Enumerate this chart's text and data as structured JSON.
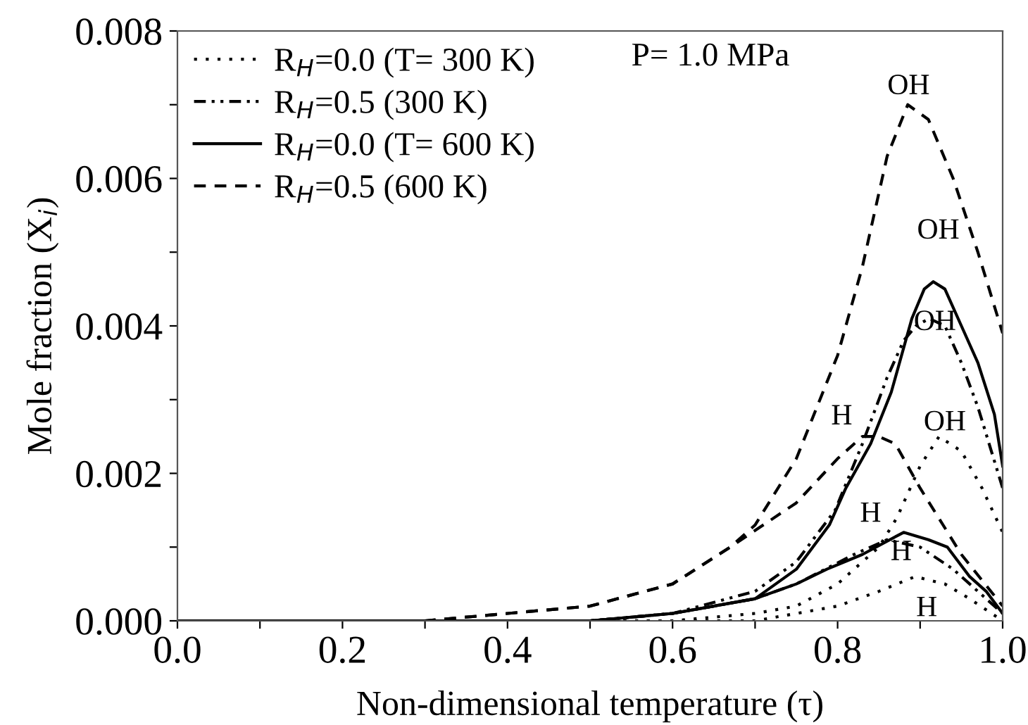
{
  "chart_data": {
    "type": "line",
    "xlabel": "Non-dimensional temperature (τ)",
    "ylabel": "Mole fraction (X$_{i}$)",
    "xlim": [
      0.0,
      1.0
    ],
    "ylim": [
      0.0,
      0.008
    ],
    "xticks": [
      {
        "value": 0.0,
        "label": "0.0"
      },
      {
        "value": 0.1,
        "label": null
      },
      {
        "value": 0.2,
        "label": "0.2"
      },
      {
        "value": 0.3,
        "label": null
      },
      {
        "value": 0.4,
        "label": "0.4"
      },
      {
        "value": 0.5,
        "label": null
      },
      {
        "value": 0.6,
        "label": "0.6"
      },
      {
        "value": 0.7,
        "label": null
      },
      {
        "value": 0.8,
        "label": "0.8"
      },
      {
        "value": 0.9,
        "label": null
      },
      {
        "value": 1.0,
        "label": "1.0"
      }
    ],
    "yticks": [
      {
        "value": 0.0,
        "label": "0.000"
      },
      {
        "value": 0.001,
        "label": null
      },
      {
        "value": 0.002,
        "label": "0.002"
      },
      {
        "value": 0.003,
        "label": null
      },
      {
        "value": 0.004,
        "label": "0.004"
      },
      {
        "value": 0.005,
        "label": null
      },
      {
        "value": 0.006,
        "label": "0.006"
      },
      {
        "value": 0.007,
        "label": null
      },
      {
        "value": 0.008,
        "label": "0.008"
      }
    ],
    "grid": false,
    "legend": "top left",
    "marker": "none",
    "series": [
      {
        "name": "R$_{H}$=0.0 (T= 300 K)",
        "color": "#000000",
        "line_style": "dotted",
        "x": [
          0.0,
          0.6,
          0.7,
          0.75,
          0.8,
          0.85,
          0.872,
          0.9,
          0.923,
          0.95,
          0.975,
          1.0
        ],
        "values": [
          0.0,
          0.0,
          0.0001,
          0.0002,
          0.0005,
          0.001,
          0.0014,
          0.0021,
          0.0025,
          0.0023,
          0.0018,
          0.0012
        ]
      },
      {
        "color": "#000000",
        "line_style": "dotted",
        "x": [
          0.0,
          0.7,
          0.75,
          0.8,
          0.85,
          0.894,
          0.93,
          0.96,
          1.0
        ],
        "values": [
          0.0,
          0.0,
          0.0001,
          0.0002,
          0.0004,
          0.0006,
          0.0005,
          0.0003,
          0.0
        ]
      },
      {
        "name": "R$_{H}$=0.5 (300 K)",
        "color": "#000000",
        "line_style": "dashdot",
        "x": [
          0.0,
          0.5,
          0.6,
          0.7,
          0.75,
          0.797,
          0.83,
          0.86,
          0.88,
          0.895,
          0.911,
          0.93,
          0.95,
          0.97,
          1.0
        ],
        "values": [
          0.0,
          0.0,
          0.0001,
          0.0004,
          0.0008,
          0.0015,
          0.0024,
          0.0033,
          0.0038,
          0.004,
          0.0041,
          0.004,
          0.0035,
          0.0029,
          0.0018
        ]
      },
      {
        "color": "#000000",
        "line_style": "dashdot",
        "x": [
          0.0,
          0.5,
          0.6,
          0.7,
          0.75,
          0.82,
          0.86,
          0.9,
          0.94,
          0.97,
          1.0
        ],
        "values": [
          0.0,
          0.0,
          0.0001,
          0.0003,
          0.0005,
          0.0009,
          0.0011,
          0.001,
          0.0007,
          0.0004,
          0.0001
        ]
      },
      {
        "name": "R$_{H}$=0.0 (T= 600 K)",
        "color": "#000000",
        "line_style": "solid",
        "x": [
          0.0,
          0.5,
          0.6,
          0.7,
          0.75,
          0.79,
          0.81,
          0.84,
          0.865,
          0.89,
          0.905,
          0.916,
          0.93,
          0.95,
          0.97,
          0.99,
          1.0
        ],
        "values": [
          0.0,
          0.0,
          0.0001,
          0.0003,
          0.0007,
          0.0013,
          0.0018,
          0.0024,
          0.0031,
          0.0041,
          0.0045,
          0.0046,
          0.0045,
          0.004,
          0.0035,
          0.0028,
          0.0021
        ]
      },
      {
        "color": "#000000",
        "line_style": "solid",
        "x": [
          0.0,
          0.5,
          0.6,
          0.7,
          0.75,
          0.787,
          0.83,
          0.88,
          0.91,
          0.933,
          0.96,
          0.98,
          1.0
        ],
        "values": [
          0.0,
          0.0,
          0.0001,
          0.0003,
          0.0005,
          0.0007,
          0.0009,
          0.0012,
          0.0011,
          0.001,
          0.0006,
          0.0004,
          0.0001
        ]
      },
      {
        "name": "R$_{H}$=0.5 (600 K)",
        "color": "#000000",
        "line_style": "dashed",
        "x": [
          0.0,
          0.3,
          0.4,
          0.5,
          0.6,
          0.67,
          0.7,
          0.75,
          0.8,
          0.83,
          0.86,
          0.885,
          0.91,
          0.94,
          0.97,
          1.0
        ],
        "values": [
          0.0,
          0.0,
          0.0001,
          0.0002,
          0.0005,
          0.001,
          0.0013,
          0.0022,
          0.0036,
          0.0048,
          0.0063,
          0.007,
          0.0068,
          0.006,
          0.005,
          0.0039
        ]
      },
      {
        "color": "#000000",
        "line_style": "dashed",
        "x": [
          0.0,
          0.3,
          0.4,
          0.5,
          0.6,
          0.67,
          0.75,
          0.8,
          0.83,
          0.85,
          0.87,
          0.9,
          0.95,
          1.0
        ],
        "values": [
          0.0,
          0.0,
          0.0001,
          0.0002,
          0.0005,
          0.001,
          0.0016,
          0.0022,
          0.0025,
          0.0025,
          0.0024,
          0.0018,
          0.0009,
          0.0002
        ]
      }
    ],
    "annotations": [
      "P= 1.0 MPa",
      "OH",
      "OH",
      "OH",
      "OH",
      "H",
      "H",
      "H",
      "H"
    ]
  }
}
